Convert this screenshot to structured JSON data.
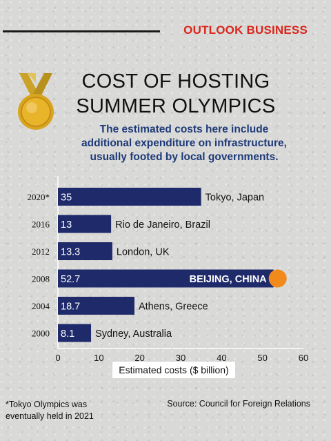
{
  "header": {
    "brand": "OUTLOOK BUSINESS",
    "brand_color": "#d9251c"
  },
  "title_lines": [
    "COST OF HOSTING",
    "SUMMER OLYMPICS"
  ],
  "subtitle_lines": [
    "The estimated costs here include",
    "additional expenditure on infrastructure,",
    "usually footed by local governments."
  ],
  "footnote_lines": [
    "*Tokyo Olympics was",
    "eventually held in 2021"
  ],
  "source": "Source: Council for Foreign Relations",
  "medal_icon": "gold-medal-icon",
  "chart_data": {
    "type": "bar",
    "orientation": "horizontal",
    "categories": [
      "2020*",
      "2016",
      "2012",
      "2008",
      "2004",
      "2000"
    ],
    "values": [
      35,
      13,
      13.3,
      52.7,
      18.7,
      8.1
    ],
    "value_labels": [
      "35",
      "13",
      "13.3",
      "52.7",
      "18.7",
      "8.1"
    ],
    "annotations": [
      "Tokyo, Japan",
      "Rio de Janeiro, Brazil",
      "London, UK",
      "BEIJING, CHINA",
      "Athens, Greece",
      "Sydney, Australia"
    ],
    "highlight_index": 3,
    "xlabel": "Estimated costs ($ billion)",
    "xlim": [
      0,
      60
    ],
    "xticks": [
      0,
      10,
      20,
      30,
      40,
      50,
      60
    ],
    "grid": false,
    "bar_color": "#1f2a6b",
    "highlight_marker_color": "#f28a1b"
  }
}
